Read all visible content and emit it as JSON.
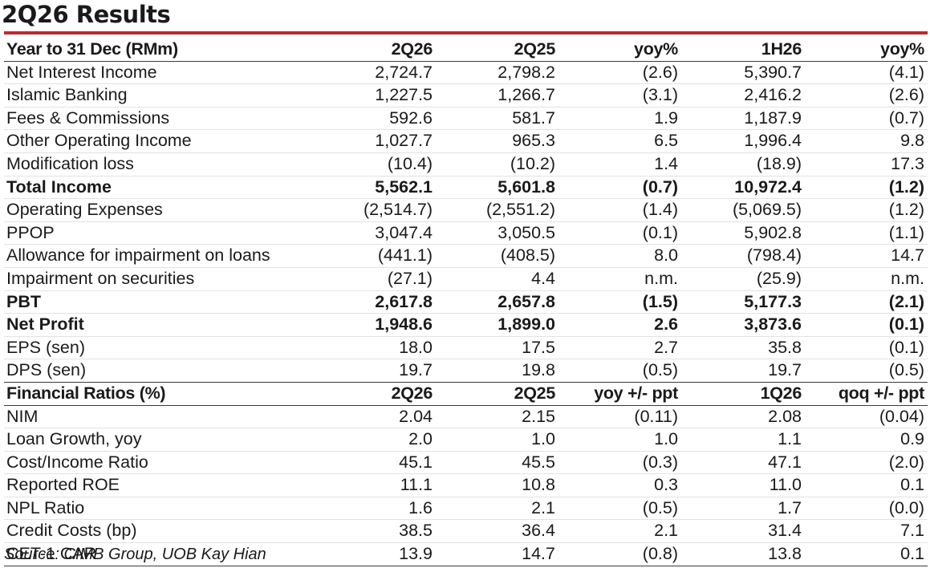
{
  "title": "2Q26 Results",
  "source": "Source: CIMB Group, UOB Kay Hian",
  "income_header": [
    "Year to 31 Dec (RMm)",
    "2Q26",
    "2Q25",
    "yoy%",
    "1H26",
    "yoy%"
  ],
  "income_rows": [
    {
      "label": "Net Interest Income",
      "bold": false,
      "v": [
        "2,724.7",
        "2,798.2",
        "(2.6)",
        "5,390.7",
        "(4.1)"
      ]
    },
    {
      "label": "Islamic Banking",
      "bold": false,
      "v": [
        "1,227.5",
        "1,266.7",
        "(3.1)",
        "2,416.2",
        "(2.6)"
      ]
    },
    {
      "label": "Fees & Commissions",
      "bold": false,
      "v": [
        "592.6",
        "581.7",
        "1.9",
        "1,187.9",
        "(0.7)"
      ]
    },
    {
      "label": "Other Operating Income",
      "bold": false,
      "v": [
        "1,027.7",
        "965.3",
        "6.5",
        "1,996.4",
        "9.8"
      ]
    },
    {
      "label": "Modification loss",
      "bold": false,
      "v": [
        "(10.4)",
        "(10.2)",
        "1.4",
        "(18.9)",
        "17.3"
      ]
    },
    {
      "label": "Total Income",
      "bold": true,
      "v": [
        "5,562.1",
        "5,601.8",
        "(0.7)",
        "10,972.4",
        "(1.2)"
      ]
    },
    {
      "label": "Operating Expenses",
      "bold": false,
      "v": [
        "(2,514.7)",
        "(2,551.2)",
        "(1.4)",
        "(5,069.5)",
        "(1.2)"
      ]
    },
    {
      "label": "PPOP",
      "bold": false,
      "v": [
        "3,047.4",
        "3,050.5",
        "(0.1)",
        "5,902.8",
        "(1.1)"
      ]
    },
    {
      "label": "Allowance for impairment on loans",
      "bold": false,
      "v": [
        "(441.1)",
        "(408.5)",
        "8.0",
        "(798.4)",
        "14.7"
      ]
    },
    {
      "label": "Impairment on securities",
      "bold": false,
      "v": [
        "(27.1)",
        "4.4",
        "n.m.",
        "(25.9)",
        "n.m."
      ]
    },
    {
      "label": "PBT",
      "bold": true,
      "v": [
        "2,617.8",
        "2,657.8",
        "(1.5)",
        "5,177.3",
        "(2.1)"
      ]
    },
    {
      "label": "Net Profit",
      "bold": true,
      "v": [
        "1,948.6",
        "1,899.0",
        "2.6",
        "3,873.6",
        "(0.1)"
      ]
    },
    {
      "label": "EPS (sen)",
      "bold": false,
      "v": [
        "18.0",
        "17.5",
        "2.7",
        "35.8",
        "(0.1)"
      ]
    },
    {
      "label": "DPS (sen)",
      "bold": false,
      "v": [
        "19.7",
        "19.8",
        "(0.5)",
        "19.7",
        "(0.5)"
      ]
    }
  ],
  "ratio_header": [
    "Financial Ratios (%)",
    "2Q26",
    "2Q25",
    "yoy +/- ppt",
    "1Q26",
    "qoq +/- ppt"
  ],
  "ratio_rows": [
    {
      "label": "NIM",
      "bold": false,
      "v": [
        "2.04",
        "2.15",
        "(0.11)",
        "2.08",
        "(0.04)"
      ]
    },
    {
      "label": "Loan Growth, yoy",
      "bold": false,
      "v": [
        "2.0",
        "1.0",
        "1.0",
        "1.1",
        "0.9"
      ]
    },
    {
      "label": "Cost/Income Ratio",
      "bold": false,
      "v": [
        "45.1",
        "45.5",
        "(0.3)",
        "47.1",
        "(2.0)"
      ]
    },
    {
      "label": "Reported ROE",
      "bold": false,
      "v": [
        "11.1",
        "10.8",
        "0.3",
        "11.0",
        "0.1"
      ]
    },
    {
      "label": "NPL Ratio",
      "bold": false,
      "v": [
        "1.6",
        "2.1",
        "(0.5)",
        "1.7",
        "(0.0)"
      ]
    },
    {
      "label": "Credit Costs (bp)",
      "bold": false,
      "v": [
        "38.5",
        "36.4",
        "2.1",
        "31.4",
        "7.1"
      ]
    },
    {
      "label": "CET-1 CAR",
      "bold": false,
      "v": [
        "13.9",
        "14.7",
        "(0.8)",
        "13.8",
        "0.1"
      ]
    }
  ],
  "colors": {
    "accent_rule": "#c0282d",
    "text": "#1a1a1a",
    "row_divider": "#e2e2e2"
  }
}
